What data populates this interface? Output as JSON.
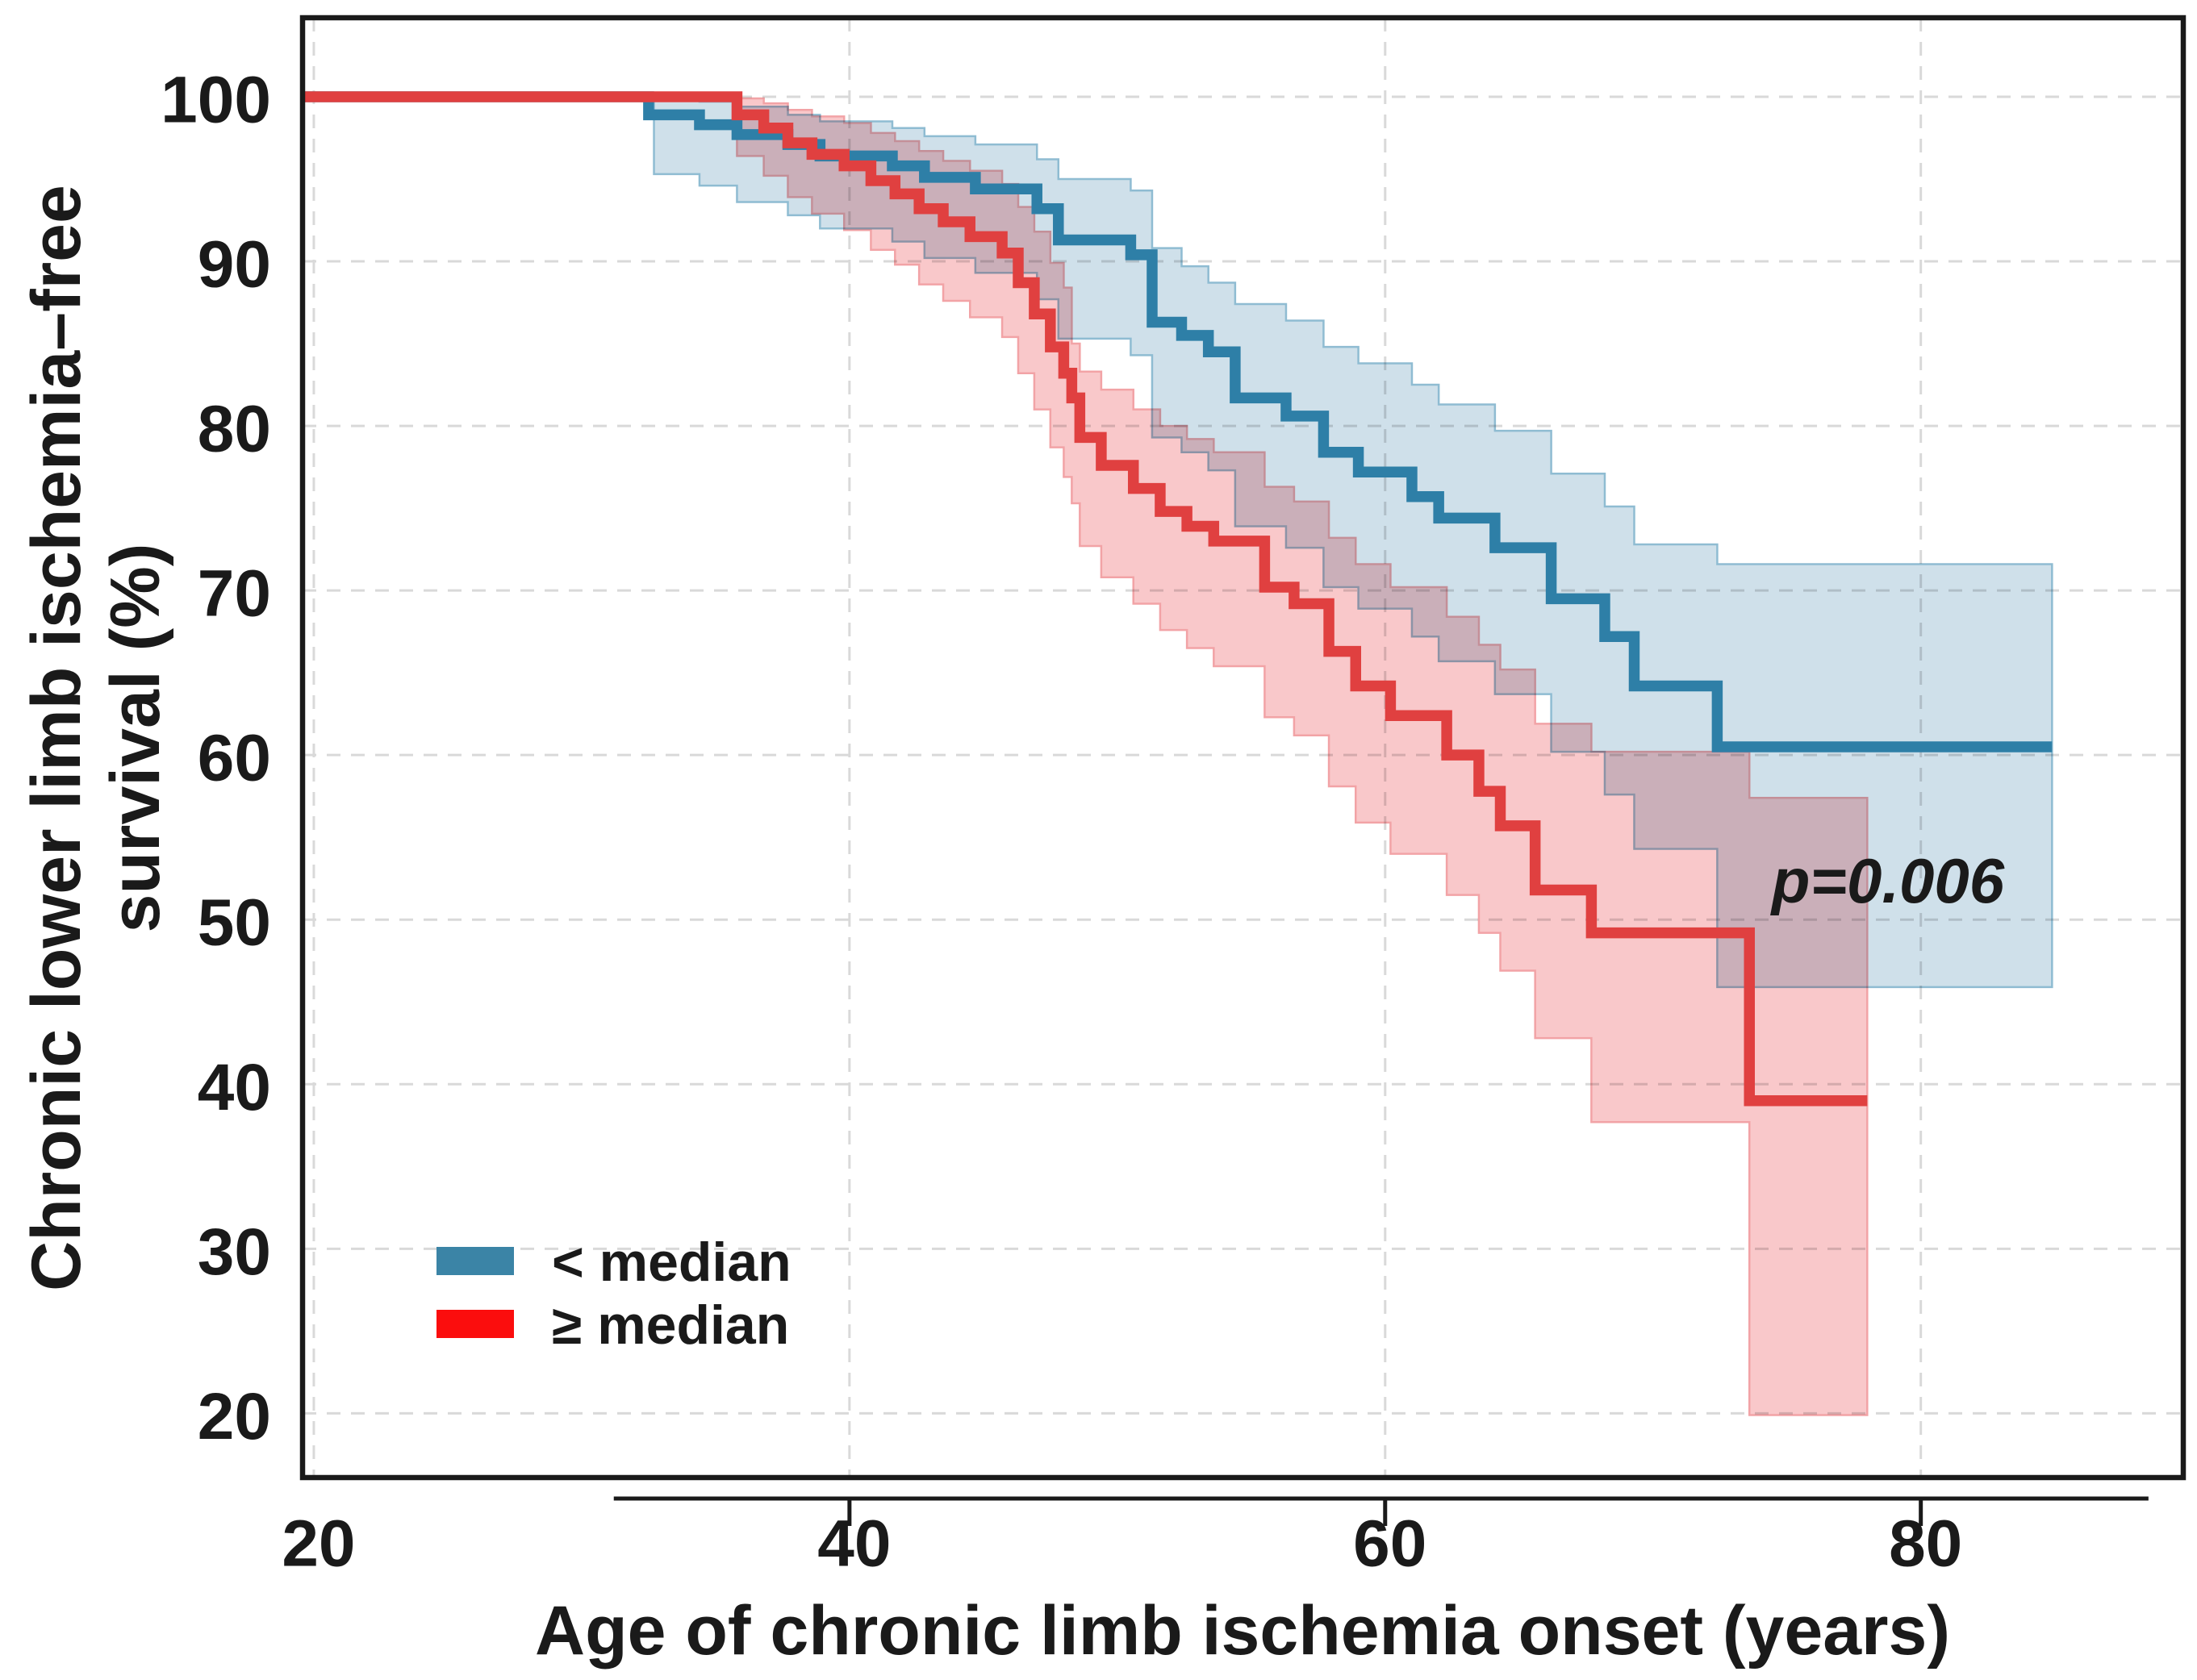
{
  "chart_data": {
    "type": "line",
    "subtype": "kaplan-meier-step-curves-with-confidence-bands",
    "title": "",
    "xlabel": "Age of chronic limb ischemia onset (years)",
    "ylabel_line1": "Chronic lower limb ischemia–free",
    "ylabel_line2": "survival (%)",
    "annotation": {
      "text": "p=0.006",
      "age": 78.6,
      "survival": 52.5
    },
    "xlim": [
      19.58,
      89.8
    ],
    "ylim": [
      16.1,
      104.8
    ],
    "x_ticks": [
      20,
      40,
      60,
      80
    ],
    "y_ticks": [
      100,
      90,
      80,
      70,
      60,
      50,
      40,
      30,
      20
    ],
    "axis_line_ticks": [
      40,
      60,
      80
    ],
    "axis_line_range": [
      31.2,
      88.5
    ],
    "grid": "dashed light-gray at all ticks, both axes",
    "legend_position": "inside lower-left",
    "colors": {
      "frame": "#1a1a1a",
      "grid": "#d9d9d9",
      "text": "#1a1a1a",
      "blue_line": "#2e7fa7",
      "blue_band": "#cfe0ea",
      "blue_band_edge": "#8fbcd2",
      "legend_blue": "#3b84a6",
      "red_line": "#e04040",
      "red_band": "#f9c8ca",
      "red_band_edge": "#f2a3a6",
      "legend_red": "#fb0d0d"
    },
    "legend": {
      "entries": [
        {
          "label": "< median",
          "series": "lt_median"
        },
        {
          "label": "≥ median",
          "series": "ge_median"
        }
      ]
    },
    "series": [
      {
        "id": "lt_median",
        "name": "< median",
        "start_value": 100,
        "end_age": 84.9,
        "steps": [
          [
            32.5,
            98.9
          ],
          [
            34.4,
            98.3
          ],
          [
            35.8,
            97.7
          ],
          [
            37.7,
            97.1
          ],
          [
            38.9,
            96.4
          ],
          [
            41.6,
            95.8
          ],
          [
            42.8,
            95.1
          ],
          [
            44.7,
            94.4
          ],
          [
            47.0,
            93.2
          ],
          [
            47.8,
            91.3
          ],
          [
            50.5,
            90.4
          ],
          [
            51.3,
            86.3
          ],
          [
            52.4,
            85.5
          ],
          [
            53.4,
            84.5
          ],
          [
            54.4,
            81.7
          ],
          [
            56.3,
            80.6
          ],
          [
            57.7,
            78.4
          ],
          [
            59.0,
            77.2
          ],
          [
            61.0,
            75.7
          ],
          [
            62.0,
            74.4
          ],
          [
            64.1,
            72.6
          ],
          [
            66.2,
            69.5
          ],
          [
            68.2,
            67.2
          ],
          [
            69.3,
            64.2
          ],
          [
            72.4,
            60.5
          ]
        ],
        "ci_end_age": 84.9,
        "ci": [
          [
            32.7,
            95.3,
            99.9
          ],
          [
            34.4,
            94.6,
            99.7
          ],
          [
            35.8,
            93.6,
            99.4
          ],
          [
            37.7,
            92.8,
            98.9
          ],
          [
            38.9,
            92.0,
            98.5
          ],
          [
            41.6,
            91.2,
            98.1
          ],
          [
            42.8,
            90.2,
            97.6
          ],
          [
            44.7,
            89.3,
            97.1
          ],
          [
            47.0,
            87.7,
            96.2
          ],
          [
            47.8,
            85.3,
            95.0
          ],
          [
            50.5,
            84.3,
            94.3
          ],
          [
            51.3,
            79.3,
            90.8
          ],
          [
            52.4,
            78.4,
            89.7
          ],
          [
            53.4,
            77.3,
            88.7
          ],
          [
            54.4,
            73.9,
            87.4
          ],
          [
            56.3,
            72.6,
            86.4
          ],
          [
            57.7,
            70.2,
            84.8
          ],
          [
            59.0,
            68.9,
            83.8
          ],
          [
            61.0,
            67.2,
            82.5
          ],
          [
            62.0,
            65.7,
            81.3
          ],
          [
            64.1,
            63.7,
            79.7
          ],
          [
            66.2,
            60.2,
            77.1
          ],
          [
            68.2,
            57.6,
            75.1
          ],
          [
            69.3,
            54.3,
            72.8
          ],
          [
            72.4,
            45.9,
            71.6
          ]
        ]
      },
      {
        "id": "ge_median",
        "name": "≥ median",
        "start_value": 100,
        "end_age": 78.0,
        "steps": [
          [
            35.8,
            98.9
          ],
          [
            36.8,
            98.1
          ],
          [
            37.7,
            97.2
          ],
          [
            38.6,
            96.5
          ],
          [
            39.8,
            95.8
          ],
          [
            40.8,
            94.9
          ],
          [
            41.7,
            94.1
          ],
          [
            42.6,
            93.2
          ],
          [
            43.5,
            92.4
          ],
          [
            44.5,
            91.5
          ],
          [
            45.7,
            90.5
          ],
          [
            46.3,
            88.7
          ],
          [
            46.9,
            86.8
          ],
          [
            47.5,
            84.8
          ],
          [
            48.0,
            83.2
          ],
          [
            48.3,
            81.7
          ],
          [
            48.6,
            79.3
          ],
          [
            49.4,
            77.6
          ],
          [
            50.6,
            76.2
          ],
          [
            51.6,
            74.8
          ],
          [
            52.6,
            73.9
          ],
          [
            53.6,
            73.0
          ],
          [
            55.5,
            70.2
          ],
          [
            56.6,
            69.2
          ],
          [
            57.9,
            66.3
          ],
          [
            58.9,
            64.2
          ],
          [
            60.2,
            62.4
          ],
          [
            62.3,
            60.0
          ],
          [
            63.5,
            57.8
          ],
          [
            64.3,
            55.7
          ],
          [
            65.6,
            51.8
          ],
          [
            67.7,
            49.2
          ],
          [
            73.6,
            39.0
          ]
        ],
        "ci_end_age": 78.0,
        "ci": [
          [
            35.8,
            96.4,
            99.9
          ],
          [
            36.8,
            95.2,
            99.6
          ],
          [
            37.7,
            93.9,
            99.2
          ],
          [
            38.6,
            92.9,
            98.8
          ],
          [
            39.8,
            91.9,
            98.4
          ],
          [
            40.8,
            90.7,
            97.8
          ],
          [
            41.7,
            89.8,
            97.3
          ],
          [
            42.6,
            88.6,
            96.7
          ],
          [
            43.5,
            87.6,
            96.1
          ],
          [
            44.5,
            86.6,
            95.5
          ],
          [
            45.7,
            85.4,
            94.7
          ],
          [
            46.3,
            83.2,
            93.3
          ],
          [
            46.9,
            81.0,
            91.8
          ],
          [
            47.5,
            78.7,
            89.9
          ],
          [
            48.0,
            76.9,
            88.4
          ],
          [
            48.3,
            75.3,
            85.0
          ],
          [
            48.6,
            72.7,
            83.3
          ],
          [
            49.4,
            70.8,
            82.2
          ],
          [
            50.6,
            69.2,
            81.0
          ],
          [
            51.6,
            67.6,
            80.0
          ],
          [
            52.6,
            66.5,
            79.2
          ],
          [
            53.6,
            65.4,
            78.4
          ],
          [
            55.5,
            62.3,
            76.3
          ],
          [
            56.6,
            61.2,
            75.4
          ],
          [
            57.9,
            58.1,
            73.2
          ],
          [
            58.9,
            55.9,
            71.6
          ],
          [
            60.2,
            54.0,
            70.2
          ],
          [
            62.3,
            51.5,
            68.4
          ],
          [
            63.5,
            49.2,
            66.7
          ],
          [
            64.3,
            46.9,
            65.2
          ],
          [
            65.6,
            42.8,
            61.9
          ],
          [
            67.7,
            37.7,
            60.2
          ],
          [
            73.6,
            19.9,
            57.4
          ]
        ]
      }
    ]
  }
}
